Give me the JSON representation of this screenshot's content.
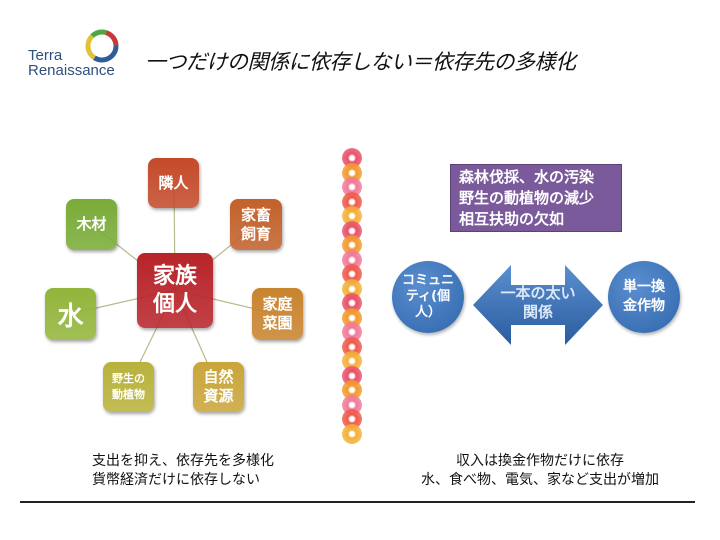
{
  "logo": {
    "line1": "Terra",
    "line2": "Renaissance"
  },
  "title": "一つだけの関係に依存しない＝依存先の多様化",
  "left_diagram": {
    "center": {
      "label": "家族\n個人",
      "color": "#b8242a"
    },
    "nodes": [
      {
        "label": "隣人",
        "color": "#c44a2a"
      },
      {
        "label": "家畜\n飼育",
        "color": "#c2612b"
      },
      {
        "label": "家庭\n菜園",
        "color": "#c8842e"
      },
      {
        "label": "自然\n資源",
        "color": "#c9a53a"
      },
      {
        "label": "野生の\n動植物",
        "color": "#b8b23c"
      },
      {
        "label": "水",
        "color": "#92b53c"
      },
      {
        "label": "木材",
        "color": "#7aab38"
      }
    ]
  },
  "right_diagram": {
    "problems": "森林伐採、水の汚染\n野生の動植物の減少\n相互扶助の欠如",
    "problems_color": "#7b5a9b",
    "left_circle": "コミュニ\nティ(個\n人）",
    "right_circle": "単一換\n金作物",
    "arrow_label": "一本の太い\n関係",
    "accent": "#3a70b5"
  },
  "captions": {
    "left": "支出を抑え、依存先を多様化\n貨幣経済だけに依存しない",
    "right": "収入は換金作物だけに依存\n水、食べ物、電気、家など支出が増加"
  },
  "flower_colors": [
    "#e8506a",
    "#f29a2e",
    "#f07a9a",
    "#ee5a4a",
    "#f3b03a"
  ]
}
